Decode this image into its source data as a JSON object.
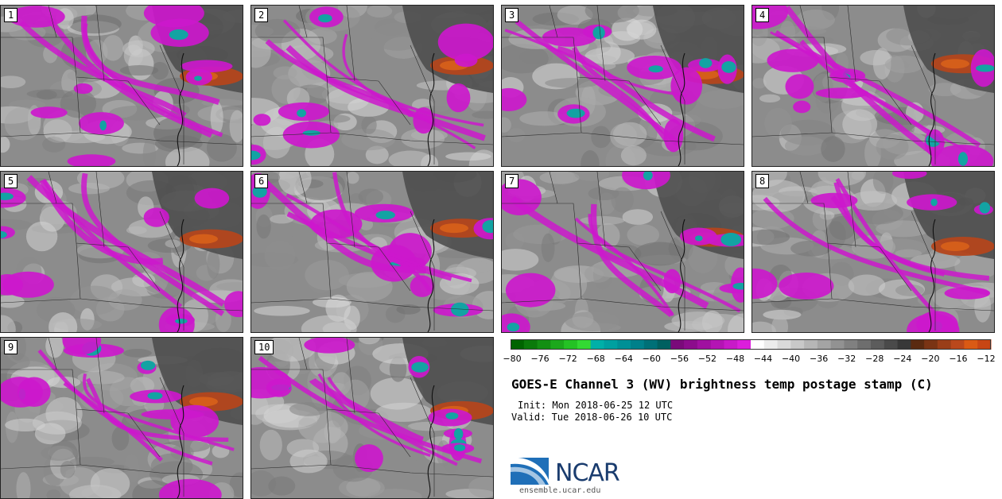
{
  "panels": [
    {
      "label": "1"
    },
    {
      "label": "2"
    },
    {
      "label": "3"
    },
    {
      "label": "4"
    },
    {
      "label": "5"
    },
    {
      "label": "6"
    },
    {
      "label": "7"
    },
    {
      "label": "8"
    },
    {
      "label": "9"
    },
    {
      "label": "10"
    }
  ],
  "colorbar": {
    "ticks": [
      "−80",
      "−76",
      "−72",
      "−68",
      "−64",
      "−60",
      "−56",
      "−52",
      "−48",
      "−44",
      "−40",
      "−36",
      "−32",
      "−28",
      "−24",
      "−20",
      "−16",
      "−12"
    ],
    "colors": [
      "#006400",
      "#0a7a0a",
      "#138f13",
      "#1ca81c",
      "#25c225",
      "#33d933",
      "#00b0a8",
      "#00a0a0",
      "#009096",
      "#00808a",
      "#007077",
      "#006060",
      "#7a0a7a",
      "#8c0c8c",
      "#a010a0",
      "#b414b4",
      "#c81ac8",
      "#dc1edc",
      "#ffffff",
      "#ececec",
      "#dadada",
      "#c8c8c8",
      "#b6b6b6",
      "#a4a4a4",
      "#929292",
      "#808080",
      "#6e6e6e",
      "#5c5c5c",
      "#4a4a4a",
      "#383838",
      "#5a2a10",
      "#7a3414",
      "#9a3e18",
      "#ba481c",
      "#da5a14",
      "#c84614"
    ]
  },
  "title": "GOES-E Channel 3 (WV) brightness temp postage stamp (C)",
  "init_line": "Init: Mon 2018-06-25 12 UTC",
  "valid_line": "Valid: Tue 2018-06-26 10 UTC",
  "logo": {
    "text": "NCAR",
    "colors": {
      "swoosh": "#1f6fb8",
      "text": "#1a3c6e"
    }
  },
  "site": "ensemble.ucar.edu"
}
